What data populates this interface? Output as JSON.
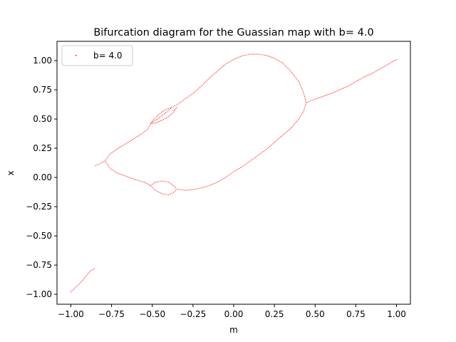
{
  "chart_data": {
    "type": "scatter",
    "title": "Bifurcation diagram for the Guassian map with b= 4.0",
    "xlabel": "m",
    "ylabel": "x",
    "xlim": [
      -1.085,
      1.085
    ],
    "ylim": [
      -1.085,
      1.165
    ],
    "xticks": [
      -1.0,
      -0.75,
      -0.5,
      -0.25,
      0.0,
      0.25,
      0.5,
      0.75,
      1.0
    ],
    "xtick_labels": [
      "−1.00",
      "−0.75",
      "−0.50",
      "−0.25",
      "0.00",
      "0.25",
      "0.50",
      "0.75",
      "1.00"
    ],
    "yticks": [
      -1.0,
      -0.75,
      -0.5,
      -0.25,
      0.0,
      0.25,
      0.5,
      0.75,
      1.0
    ],
    "ytick_labels": [
      "−1.00",
      "−0.75",
      "−0.50",
      "−0.25",
      "0.00",
      "0.25",
      "0.50",
      "0.75",
      "1.00"
    ],
    "grid": false,
    "legend": {
      "position": "upper-left",
      "entries": [
        "b= 4.0"
      ]
    },
    "series": [
      {
        "name": "b= 4.0",
        "color": "#ff0000",
        "marker": "pixel",
        "segments": [
          {
            "label_id": "lower-left",
            "points": [
              [
                -1.0,
                -0.98
              ],
              [
                -0.97,
                -0.94
              ],
              [
                -0.94,
                -0.9
              ],
              [
                -0.91,
                -0.85
              ],
              [
                -0.88,
                -0.8
              ],
              [
                -0.855,
                -0.78
              ]
            ]
          },
          {
            "label_id": "left-tail",
            "points": [
              [
                -0.85,
                0.1
              ],
              [
                -0.82,
                0.12
              ],
              [
                -0.79,
                0.14
              ]
            ]
          },
          {
            "label_id": "upper-main",
            "points": [
              [
                -0.79,
                0.14
              ],
              [
                -0.76,
                0.2
              ],
              [
                -0.72,
                0.24
              ],
              [
                -0.65,
                0.3
              ],
              [
                -0.58,
                0.36
              ],
              [
                -0.53,
                0.41
              ],
              [
                -0.51,
                0.46
              ],
              [
                -0.45,
                0.52
              ],
              [
                -0.41,
                0.56
              ],
              [
                -0.38,
                0.6
              ],
              [
                -0.35,
                0.62
              ],
              [
                -0.3,
                0.67
              ],
              [
                -0.25,
                0.72
              ],
              [
                -0.2,
                0.78
              ],
              [
                -0.15,
                0.85
              ],
              [
                -0.1,
                0.91
              ],
              [
                -0.05,
                0.97
              ],
              [
                0.0,
                1.01
              ],
              [
                0.05,
                1.04
              ],
              [
                0.1,
                1.055
              ],
              [
                0.15,
                1.055
              ],
              [
                0.2,
                1.045
              ],
              [
                0.25,
                1.02
              ],
              [
                0.3,
                0.98
              ],
              [
                0.35,
                0.91
              ],
              [
                0.4,
                0.82
              ],
              [
                0.43,
                0.72
              ],
              [
                0.445,
                0.64
              ]
            ]
          },
          {
            "label_id": "upper-bubble-top",
            "points": [
              [
                -0.51,
                0.46
              ],
              [
                -0.49,
                0.5
              ],
              [
                -0.46,
                0.54
              ],
              [
                -0.42,
                0.58
              ],
              [
                -0.38,
                0.6
              ]
            ]
          },
          {
            "label_id": "upper-bubble-bottom",
            "points": [
              [
                -0.51,
                0.46
              ],
              [
                -0.48,
                0.465
              ],
              [
                -0.44,
                0.49
              ],
              [
                -0.4,
                0.52
              ],
              [
                -0.37,
                0.56
              ],
              [
                -0.35,
                0.6
              ]
            ]
          },
          {
            "label_id": "lower-main",
            "points": [
              [
                -0.79,
                0.14
              ],
              [
                -0.76,
                0.08
              ],
              [
                -0.72,
                0.04
              ],
              [
                -0.66,
                0.01
              ],
              [
                -0.6,
                -0.02
              ],
              [
                -0.55,
                -0.04
              ],
              [
                -0.51,
                -0.07
              ]
            ]
          },
          {
            "label_id": "lower-bubble-top",
            "points": [
              [
                -0.51,
                -0.07
              ],
              [
                -0.48,
                -0.04
              ],
              [
                -0.44,
                -0.03
              ],
              [
                -0.4,
                -0.04
              ],
              [
                -0.37,
                -0.07
              ],
              [
                -0.35,
                -0.1
              ]
            ]
          },
          {
            "label_id": "lower-bubble-bottom",
            "points": [
              [
                -0.51,
                -0.07
              ],
              [
                -0.48,
                -0.11
              ],
              [
                -0.44,
                -0.14
              ],
              [
                -0.4,
                -0.15
              ],
              [
                -0.37,
                -0.13
              ],
              [
                -0.35,
                -0.1
              ]
            ]
          },
          {
            "label_id": "lower-right",
            "points": [
              [
                -0.35,
                -0.1
              ],
              [
                -0.3,
                -0.11
              ],
              [
                -0.25,
                -0.105
              ],
              [
                -0.2,
                -0.09
              ],
              [
                -0.15,
                -0.07
              ],
              [
                -0.1,
                -0.04
              ],
              [
                -0.05,
                0.0
              ],
              [
                0.0,
                0.05
              ],
              [
                0.05,
                0.09
              ],
              [
                0.1,
                0.14
              ],
              [
                0.15,
                0.19
              ],
              [
                0.2,
                0.24
              ],
              [
                0.25,
                0.3
              ],
              [
                0.3,
                0.36
              ],
              [
                0.35,
                0.42
              ],
              [
                0.4,
                0.5
              ],
              [
                0.43,
                0.57
              ],
              [
                0.445,
                0.64
              ]
            ]
          },
          {
            "label_id": "right-tail",
            "points": [
              [
                0.445,
                0.64
              ],
              [
                0.5,
                0.67
              ],
              [
                0.55,
                0.695
              ],
              [
                0.6,
                0.72
              ],
              [
                0.65,
                0.75
              ],
              [
                0.7,
                0.78
              ],
              [
                0.75,
                0.82
              ],
              [
                0.8,
                0.86
              ],
              [
                0.85,
                0.89
              ],
              [
                0.9,
                0.93
              ],
              [
                0.95,
                0.97
              ],
              [
                1.0,
                1.01
              ]
            ]
          }
        ]
      }
    ]
  }
}
